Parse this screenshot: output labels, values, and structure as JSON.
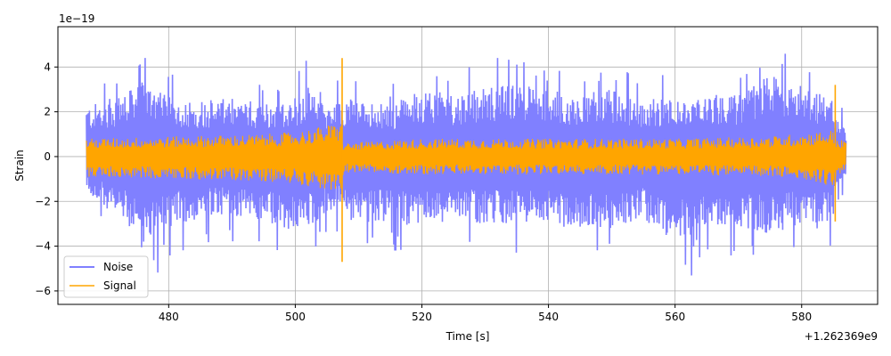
{
  "chart_data": {
    "type": "line",
    "xlabel": "Time [s]",
    "ylabel": "Strain",
    "y_exponent_label": "1e−19",
    "x_offset_label": "+1.262369e9",
    "xlim": [
      462.5,
      592.0
    ],
    "ylim": [
      -6.6,
      5.8
    ],
    "xticks": [
      480,
      500,
      520,
      540,
      560,
      580
    ],
    "xtick_labels": [
      "480",
      "500",
      "520",
      "540",
      "560",
      "580"
    ],
    "yticks": [
      -6,
      -4,
      -2,
      0,
      2,
      4
    ],
    "ytick_labels": [
      "−6",
      "−4",
      "−2",
      "0",
      "2",
      "4"
    ],
    "grid": true,
    "legend_position": "lower-left",
    "x_range_data": [
      467.0,
      587.0
    ],
    "series": [
      {
        "name": "Noise",
        "color": "#8080ff",
        "envelope_x": [
          467,
          470,
          473,
          476,
          480,
          485,
          490,
          495,
          500,
          503,
          505,
          507.3,
          507.6,
          510,
          515,
          520,
          525,
          530,
          535,
          540,
          545,
          550,
          555,
          560,
          562,
          563,
          565,
          570,
          575,
          580,
          583,
          585,
          587
        ],
        "envelope_upper": [
          3.2,
          3.6,
          4.0,
          4.8,
          3.8,
          3.6,
          3.7,
          3.5,
          3.8,
          4.8,
          3.5,
          3.5,
          3.9,
          3.6,
          3.3,
          4.3,
          4.0,
          4.4,
          4.7,
          4.2,
          4.0,
          4.3,
          3.6,
          4.0,
          3.2,
          3.5,
          4.0,
          4.0,
          5.2,
          4.8,
          4.0,
          3.6,
          1.6
        ],
        "envelope_lower": [
          -2.2,
          -3.4,
          -4.2,
          -6.1,
          -4.5,
          -4.0,
          -3.8,
          -4.3,
          -5.0,
          -4.3,
          -3.6,
          -3.3,
          -3.9,
          -4.3,
          -4.2,
          -4.5,
          -4.0,
          -4.3,
          -4.3,
          -4.3,
          -4.7,
          -4.6,
          -4.0,
          -5.6,
          -4.8,
          -5.9,
          -4.3,
          -4.5,
          -5.0,
          -4.3,
          -4.8,
          -3.8,
          -1.5
        ]
      },
      {
        "name": "Signal",
        "color": "#ffa500",
        "envelope_x": [
          467,
          480,
          495,
          500,
          505,
          507.3,
          507.6,
          520,
          540,
          560,
          575,
          582,
          585.2,
          585.5,
          587
        ],
        "envelope_upper": [
          0.8,
          0.9,
          1.0,
          1.1,
          1.4,
          1.5,
          0.6,
          0.8,
          0.8,
          0.8,
          0.9,
          1.1,
          1.2,
          0.8,
          0.7
        ],
        "envelope_lower": [
          -0.9,
          -1.0,
          -1.1,
          -1.2,
          -1.5,
          -1.8,
          -0.7,
          -0.8,
          -0.8,
          -0.8,
          -0.9,
          -1.1,
          -1.4,
          -0.9,
          -0.7
        ],
        "spikes": [
          {
            "x": 507.4,
            "max": 4.4,
            "min": -4.7
          },
          {
            "x": 585.3,
            "max": 3.2,
            "min": -2.9
          }
        ]
      }
    ]
  }
}
